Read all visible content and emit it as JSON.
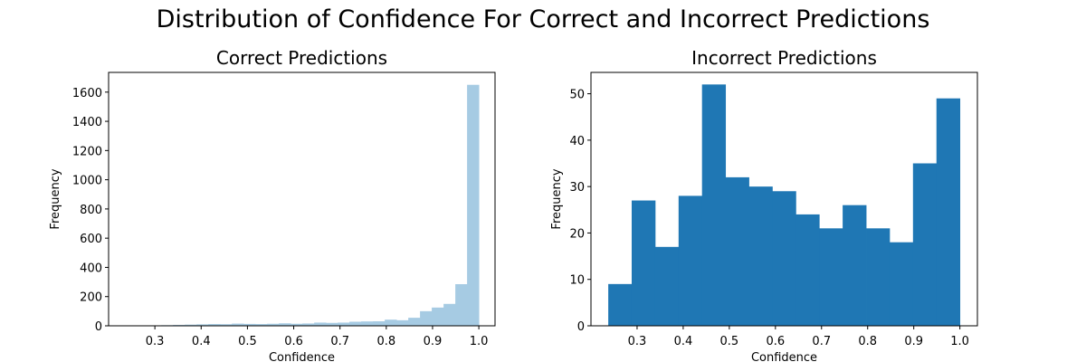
{
  "figure": {
    "title": "Distribution of Confidence For Correct and Incorrect Predictions"
  },
  "chart_data": [
    {
      "type": "bar",
      "title": "Correct Predictions",
      "xlabel": "Confidence",
      "ylabel": "Frequency",
      "color": "#a6cbe3",
      "xlim": [
        0.2,
        1.035
      ],
      "ylim": [
        0,
        1735
      ],
      "xticks": [
        0.3,
        0.4,
        0.5,
        0.6,
        0.7,
        0.8,
        0.9,
        1.0
      ],
      "xtick_labels": [
        "0.3",
        "0.4",
        "0.5",
        "0.6",
        "0.7",
        "0.8",
        "0.9",
        "1.0"
      ],
      "yticks": [
        0,
        200,
        400,
        600,
        800,
        1000,
        1200,
        1400,
        1600
      ],
      "ytick_labels": [
        "0",
        "200",
        "400",
        "600",
        "800",
        "1000",
        "1200",
        "1400",
        "1600"
      ],
      "bin_edges": [
        0.2375,
        0.2629,
        0.2883,
        0.3138,
        0.3392,
        0.3646,
        0.39,
        0.4154,
        0.4408,
        0.4663,
        0.4917,
        0.5171,
        0.5425,
        0.5679,
        0.5933,
        0.6188,
        0.6442,
        0.6696,
        0.695,
        0.7204,
        0.7458,
        0.7713,
        0.7967,
        0.8221,
        0.8475,
        0.8729,
        0.8983,
        0.9238,
        0.9492,
        0.9746,
        1.0
      ],
      "values": [
        1,
        2,
        3,
        4,
        6,
        8,
        10,
        12,
        11,
        15,
        13,
        12,
        14,
        17,
        14,
        16,
        22,
        20,
        22,
        28,
        30,
        31,
        42,
        38,
        55,
        100,
        125,
        150,
        285,
        1650
      ]
    },
    {
      "type": "bar",
      "title": "Incorrect Predictions",
      "xlabel": "Confidence",
      "ylabel": "Frequency",
      "color": "#1f77b4",
      "xlim": [
        0.2,
        1.038
      ],
      "ylim": [
        0,
        54.6
      ],
      "xticks": [
        0.3,
        0.4,
        0.5,
        0.6,
        0.7,
        0.8,
        0.9,
        1.0
      ],
      "xtick_labels": [
        "0.3",
        "0.4",
        "0.5",
        "0.6",
        "0.7",
        "0.8",
        "0.9",
        "1.0"
      ],
      "yticks": [
        0,
        10,
        20,
        30,
        40,
        50
      ],
      "ytick_labels": [
        "0",
        "10",
        "20",
        "30",
        "40",
        "50"
      ],
      "bin_edges": [
        0.2375,
        0.2883,
        0.3392,
        0.39,
        0.4408,
        0.4917,
        0.5425,
        0.5933,
        0.6442,
        0.695,
        0.7458,
        0.7967,
        0.8475,
        0.8983,
        0.9492,
        1.0
      ],
      "values": [
        9,
        27,
        17,
        28,
        52,
        32,
        30,
        29,
        24,
        21,
        26,
        21,
        18,
        35,
        49
      ]
    }
  ]
}
